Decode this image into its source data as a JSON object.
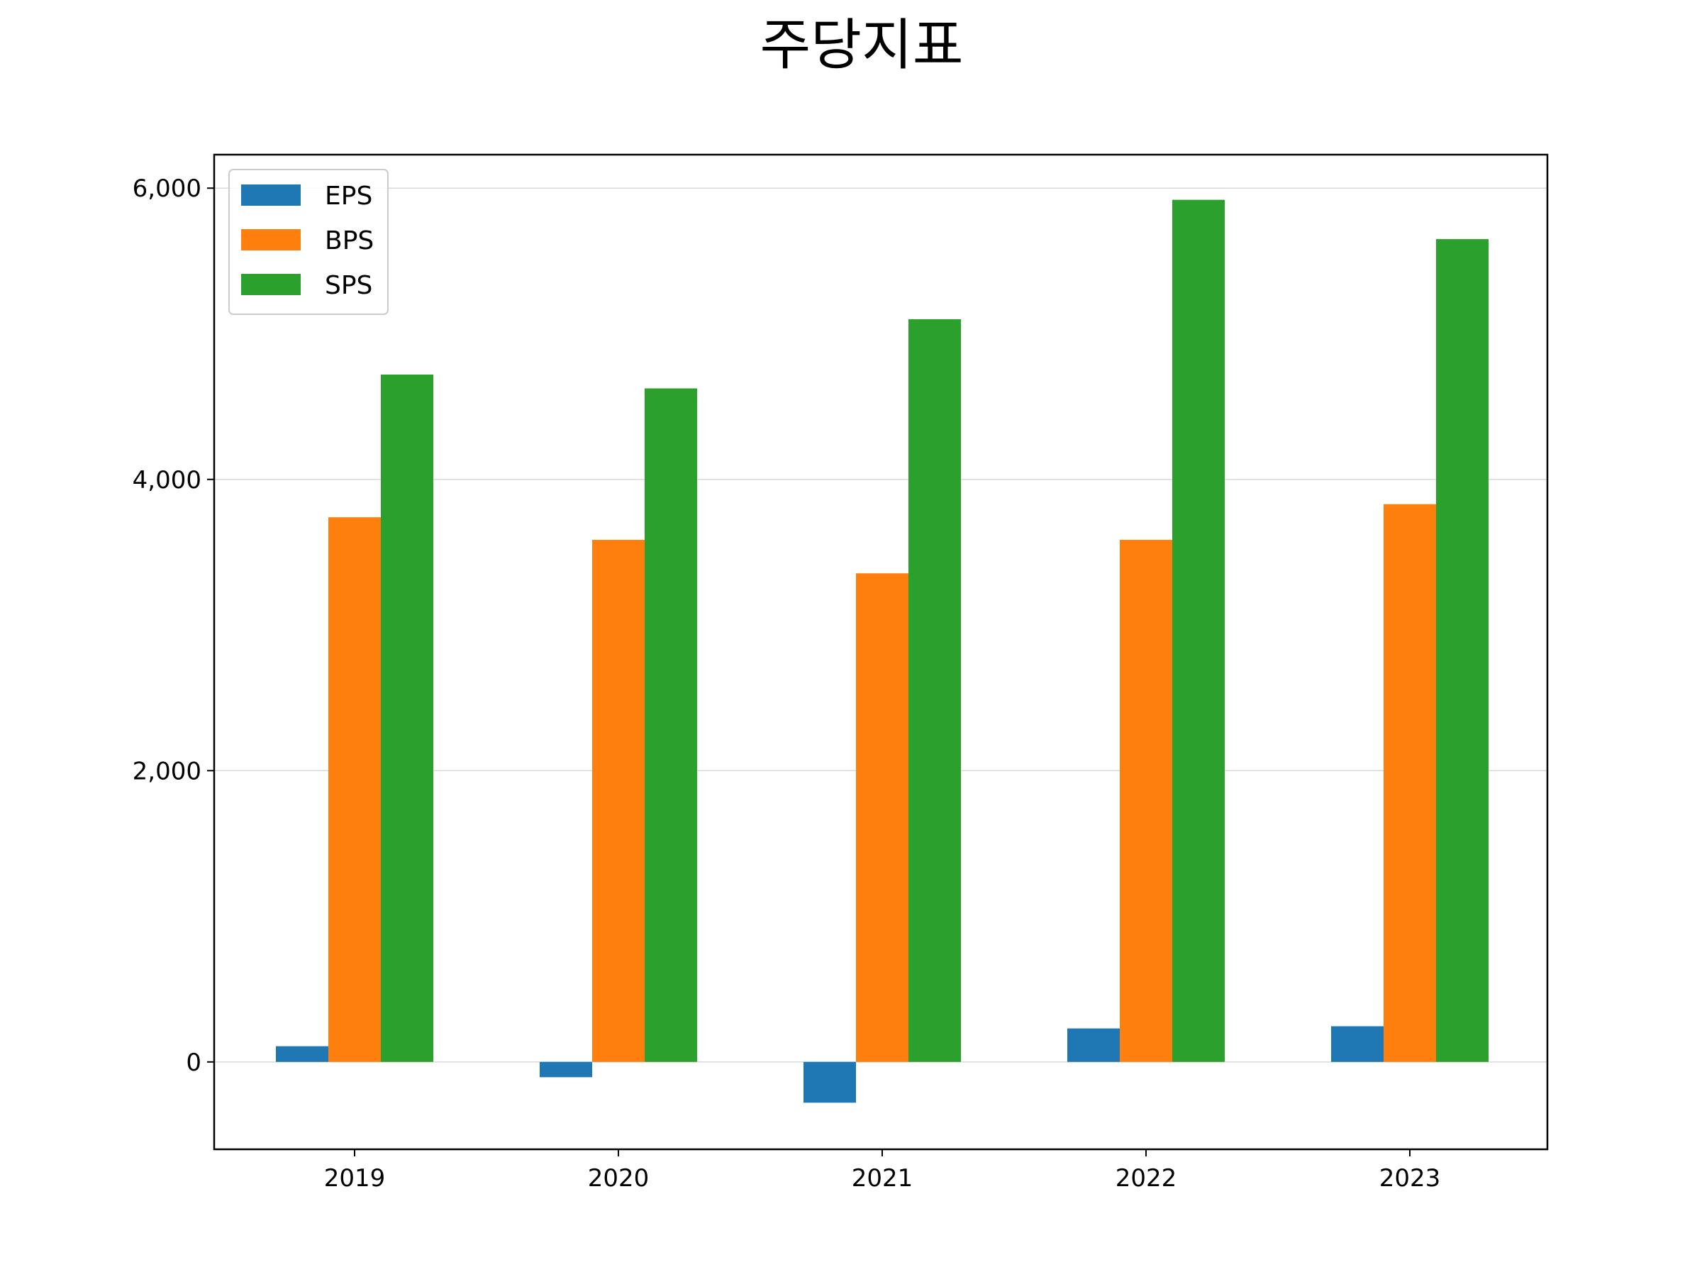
{
  "chart_data": {
    "type": "bar",
    "title": "주당지표",
    "xlabel": "",
    "ylabel": "",
    "categories": [
      "2019",
      "2020",
      "2021",
      "2022",
      "2023"
    ],
    "series": [
      {
        "name": "EPS",
        "color": "#1f77b4",
        "values": [
          108,
          -105,
          -280,
          230,
          245
        ]
      },
      {
        "name": "BPS",
        "color": "#ff7f0e",
        "values": [
          3740,
          3585,
          3355,
          3585,
          3830
        ]
      },
      {
        "name": "SPS",
        "color": "#2ca02c",
        "values": [
          4720,
          4625,
          5100,
          5920,
          5650
        ]
      }
    ],
    "ylim": [
      -600,
      6230
    ],
    "yticks": [
      0,
      2000,
      4000,
      6000
    ],
    "ytick_labels": [
      "0",
      "2,000",
      "4,000",
      "6,000"
    ],
    "grid": "y",
    "legend_position": "top-left"
  }
}
